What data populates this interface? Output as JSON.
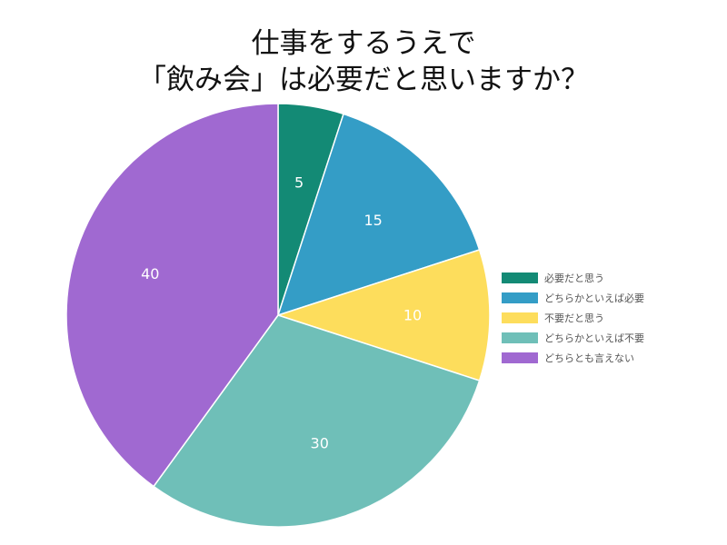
{
  "title_lines": [
    "仕事をするうえで",
    "「飲み会」は必要だと思いますか？"
  ],
  "chart_data": {
    "type": "pie",
    "title": "仕事をするうえで 「飲み会」は必要だと思いますか？",
    "categories": [
      "必要だと思う",
      "どちらかといえば必要",
      "不要だと思う",
      "どちらかといえば不要",
      "どちらとも言えない"
    ],
    "values": [
      5,
      15,
      10,
      30,
      40
    ],
    "colors": [
      "#138a75",
      "#349dc6",
      "#fddd5c",
      "#6fbfb8",
      "#a069d1"
    ],
    "data_labels": [
      "5",
      "15",
      "10",
      "30",
      "40"
    ],
    "legend_position": "right",
    "start_angle": "top, clockwise"
  }
}
